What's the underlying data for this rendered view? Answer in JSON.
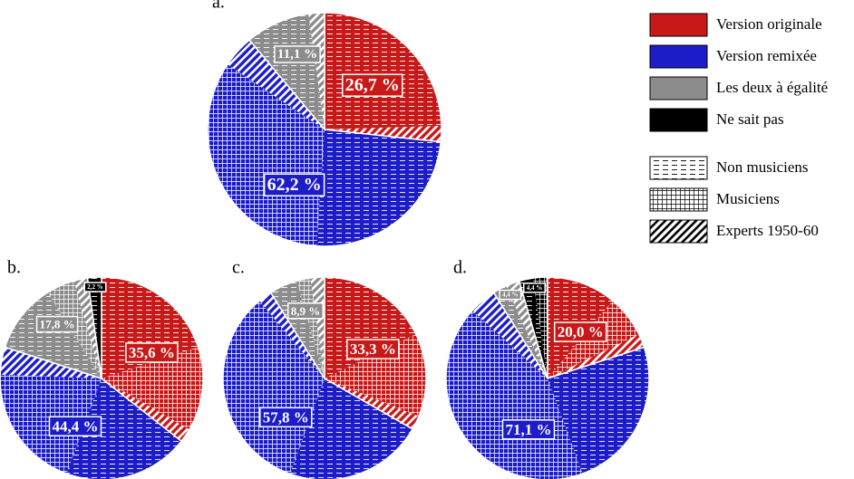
{
  "legend": {
    "categories": [
      "Version originale",
      "Version remixée",
      "Les deux à égalité",
      "Ne sait pas"
    ],
    "colors": [
      "#c81818",
      "#1c1cc8",
      "#8c8c8c",
      "#000000"
    ],
    "groups": [
      "Non musiciens",
      "Musiciens",
      "Experts 1950-60"
    ],
    "patterns": [
      "dash",
      "grid",
      "hatch"
    ]
  },
  "chart_data": [
    {
      "type": "pie",
      "title": "a.",
      "values": [
        26.7,
        62.2,
        11.1,
        0
      ],
      "value_labels": [
        "26,7 %",
        "62,2 %",
        "11,1 %",
        null
      ],
      "parts": [
        [
          24.5,
          0,
          2.2
        ],
        [
          24.4,
          33.3,
          4.5
        ],
        [
          8.9,
          0,
          2.2
        ],
        [
          0,
          0,
          0
        ]
      ]
    },
    {
      "type": "pie",
      "title": "b.",
      "values": [
        35.6,
        44.4,
        17.8,
        2.2
      ],
      "value_labels": [
        "35,6 %",
        "44,4 %",
        "17,8 %",
        "2,2 %"
      ],
      "parts": [
        [
          20,
          13.4,
          2.2
        ],
        [
          20,
          20,
          4.4
        ],
        [
          11.1,
          4.5,
          2.2
        ],
        [
          2.2,
          0,
          0
        ]
      ]
    },
    {
      "type": "pie",
      "title": "c.",
      "values": [
        33.3,
        57.8,
        8.9,
        0
      ],
      "value_labels": [
        "33,3 %",
        "57,8 %",
        "8,9 %",
        null
      ],
      "parts": [
        [
          17.8,
          13.3,
          2.2
        ],
        [
          22.2,
          33.4,
          2.2
        ],
        [
          4.5,
          2.2,
          2.2
        ],
        [
          0,
          0,
          0
        ]
      ]
    },
    {
      "type": "pie",
      "title": "d.",
      "values": [
        20.0,
        71.1,
        4.4,
        4.4
      ],
      "value_labels": [
        "20,0 %",
        "71,1 %",
        "4,4 %",
        "4,4 %"
      ],
      "parts": [
        [
          11.1,
          6.7,
          2.2
        ],
        [
          24.4,
          42.3,
          4.4
        ],
        [
          2.2,
          0,
          2.2
        ],
        [
          2.2,
          2.2,
          0
        ]
      ]
    }
  ]
}
